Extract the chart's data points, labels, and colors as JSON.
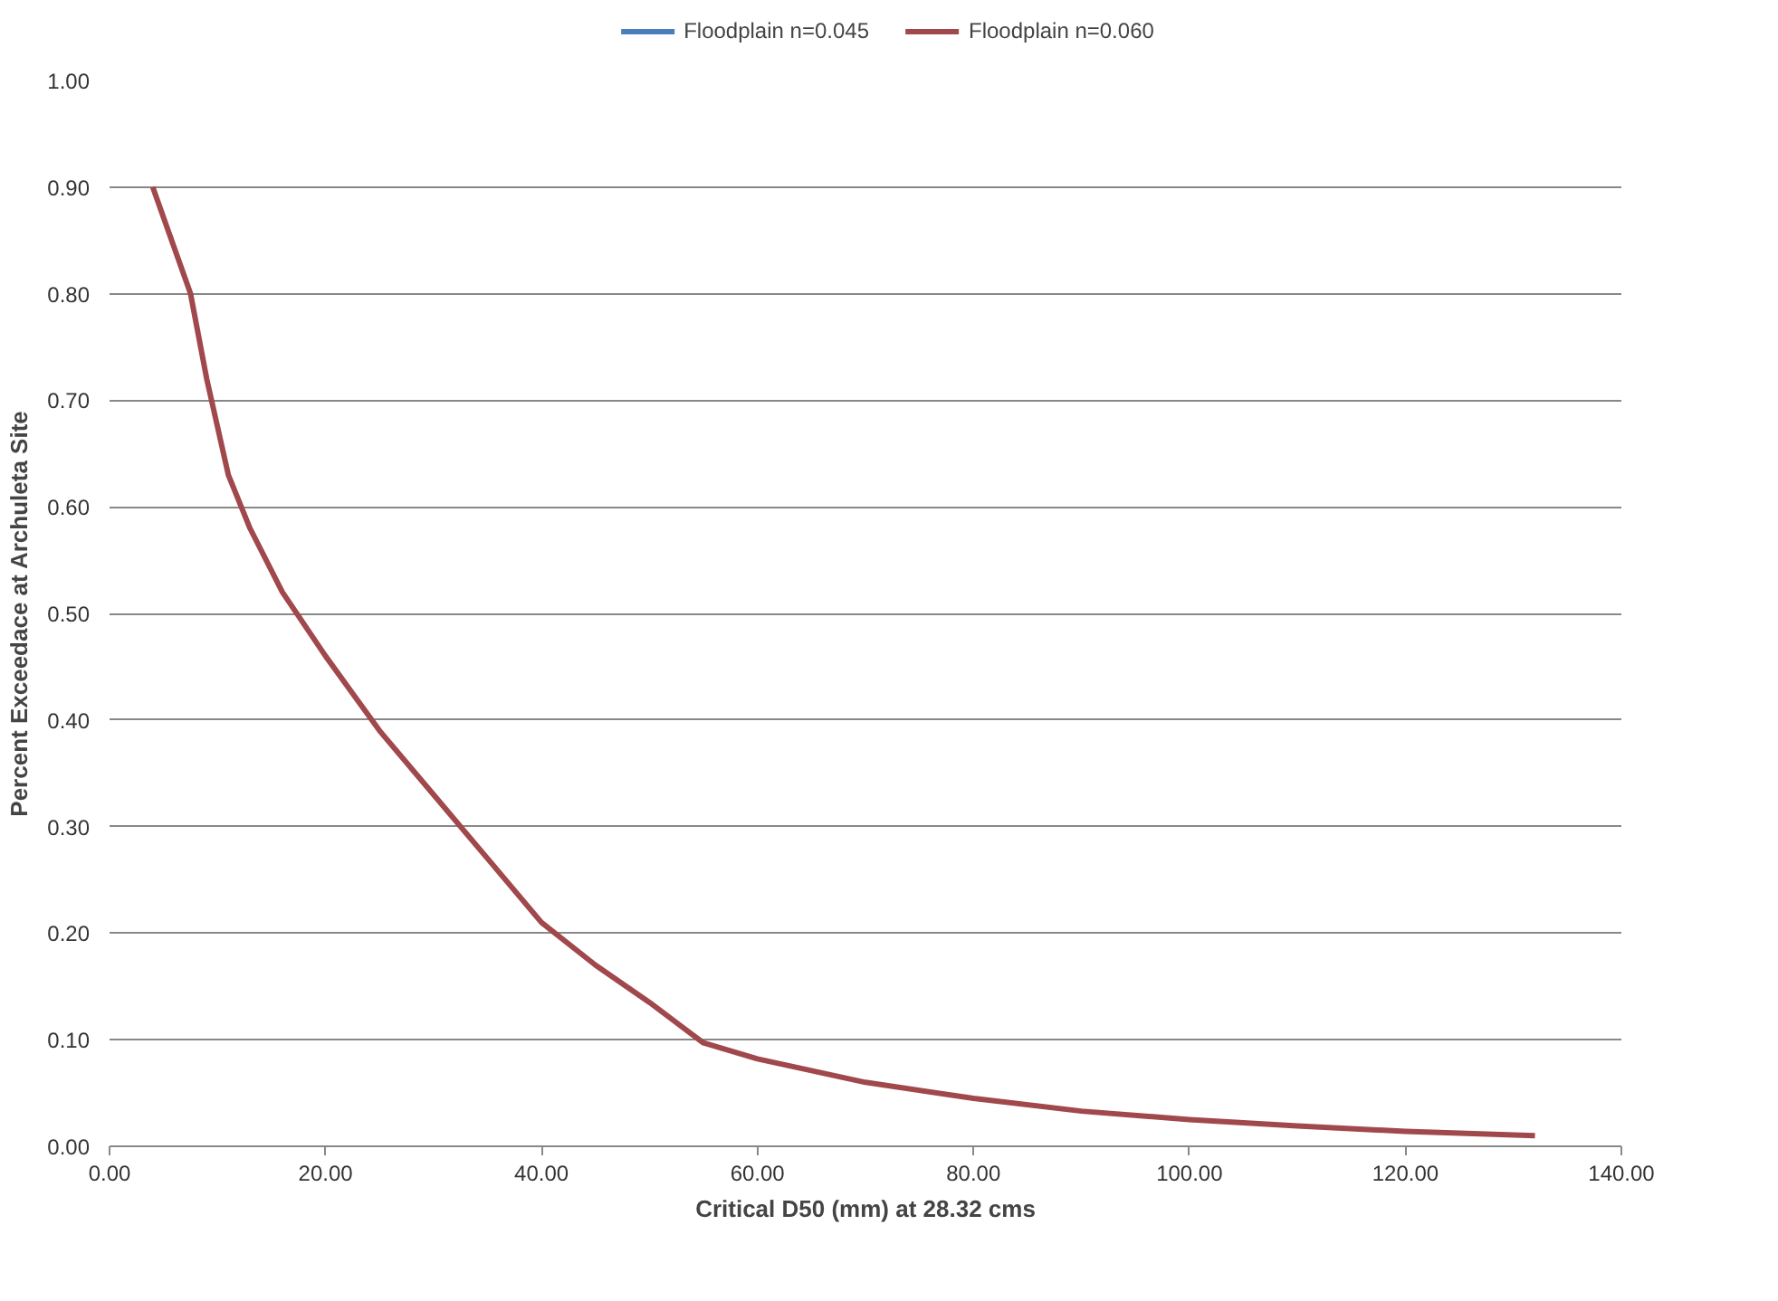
{
  "chart_data": {
    "type": "line",
    "xlabel": "Critical D50 (mm) at 28.32 cms",
    "ylabel": "Percent Exceedace at Archuleta Site",
    "x": [
      4,
      7.5,
      9,
      11,
      13,
      16,
      20,
      25,
      30,
      35,
      40,
      45,
      50,
      55,
      60,
      70,
      80,
      90,
      100,
      110,
      120,
      132
    ],
    "series": [
      {
        "name": "Floodplain n=0.045",
        "color": "#4a7ebb",
        "values": [
          null,
          null,
          null,
          null,
          null,
          null,
          null,
          null,
          null,
          null,
          null,
          null,
          null,
          null,
          null,
          null,
          null,
          null,
          null,
          null,
          null,
          null
        ]
      },
      {
        "name": "Floodplain n=0.060",
        "color": "#a0484c",
        "values": [
          0.9,
          0.8,
          0.72,
          0.63,
          0.58,
          0.52,
          0.46,
          0.39,
          0.33,
          0.27,
          0.21,
          0.17,
          0.135,
          0.097,
          0.082,
          0.06,
          0.045,
          0.033,
          0.025,
          0.019,
          0.014,
          0.01
        ]
      }
    ],
    "xlim": [
      0,
      140
    ],
    "xticks": [
      {
        "value": 0,
        "label": "0.00"
      },
      {
        "value": 20,
        "label": "20.00"
      },
      {
        "value": 40,
        "label": "40.00"
      },
      {
        "value": 60,
        "label": "60.00"
      },
      {
        "value": 80,
        "label": "80.00"
      },
      {
        "value": 100,
        "label": "100.00"
      },
      {
        "value": 120,
        "label": "120.00"
      },
      {
        "value": 140,
        "label": "140.00"
      }
    ],
    "ylim": [
      0,
      1
    ],
    "yticks": [
      {
        "value": 0,
        "label": "0.00"
      },
      {
        "value": 0.1,
        "label": "0.10"
      },
      {
        "value": 0.2,
        "label": "0.20"
      },
      {
        "value": 0.3,
        "label": "0.30"
      },
      {
        "value": 0.4,
        "label": "0.40"
      },
      {
        "value": 0.5,
        "label": "0.50"
      },
      {
        "value": 0.6,
        "label": "0.60"
      },
      {
        "value": 0.7,
        "label": "0.70"
      },
      {
        "value": 0.8,
        "label": "0.80"
      },
      {
        "value": 0.9,
        "label": "0.90"
      },
      {
        "value": 1,
        "label": "1.00"
      }
    ],
    "grid": "y",
    "legend": "top",
    "marker": "none",
    "line_style": "solid"
  }
}
